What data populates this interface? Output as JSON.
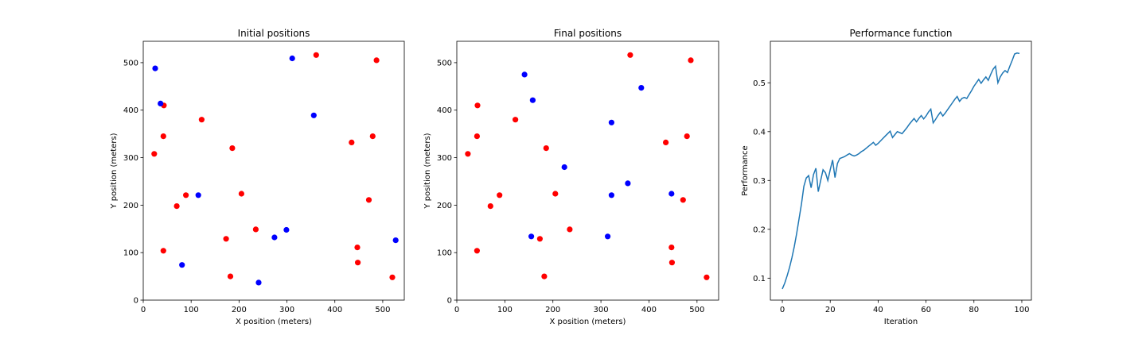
{
  "colors": {
    "red": "#ff0000",
    "blue": "#0000ff",
    "line": "#1f77b4"
  },
  "chart_data": [
    {
      "type": "scatter",
      "title": "Initial positions",
      "xlabel": "X position (meters)",
      "ylabel": "Y position (meters)",
      "xlim": [
        0,
        545
      ],
      "ylim": [
        0,
        545
      ],
      "xticks": [
        0,
        100,
        200,
        300,
        400,
        500
      ],
      "yticks": [
        0,
        100,
        200,
        300,
        400,
        500
      ],
      "series": [
        {
          "color": "red",
          "points": [
            [
              43,
              410
            ],
            [
              122,
              380
            ],
            [
              42,
              345
            ],
            [
              186,
              320
            ],
            [
              23,
              308
            ],
            [
              89,
              221
            ],
            [
              205,
              224
            ],
            [
              70,
              198
            ],
            [
              173,
              129
            ],
            [
              235,
              149
            ],
            [
              42,
              104
            ],
            [
              182,
              50
            ],
            [
              361,
              516
            ],
            [
              487,
              505
            ],
            [
              435,
              332
            ],
            [
              479,
              345
            ],
            [
              471,
              211
            ],
            [
              447,
              111
            ],
            [
              448,
              79
            ],
            [
              520,
              48
            ]
          ]
        },
        {
          "color": "blue",
          "points": [
            [
              25,
              488
            ],
            [
              36,
              414
            ],
            [
              115,
              221
            ],
            [
              81,
              74
            ],
            [
              241,
              37
            ],
            [
              274,
              132
            ],
            [
              299,
              148
            ],
            [
              311,
              509
            ],
            [
              356,
              389
            ],
            [
              527,
              126
            ]
          ]
        }
      ]
    },
    {
      "type": "scatter",
      "title": "Final positions",
      "xlabel": "X position (meters)",
      "ylabel": "Y position (meters)",
      "xlim": [
        0,
        545
      ],
      "ylim": [
        0,
        545
      ],
      "xticks": [
        0,
        100,
        200,
        300,
        400,
        500
      ],
      "yticks": [
        0,
        100,
        200,
        300,
        400,
        500
      ],
      "series": [
        {
          "color": "red",
          "points": [
            [
              43,
              410
            ],
            [
              122,
              380
            ],
            [
              42,
              345
            ],
            [
              186,
              320
            ],
            [
              23,
              308
            ],
            [
              89,
              221
            ],
            [
              205,
              224
            ],
            [
              70,
              198
            ],
            [
              173,
              129
            ],
            [
              235,
              149
            ],
            [
              42,
              104
            ],
            [
              182,
              50
            ],
            [
              361,
              516
            ],
            [
              487,
              505
            ],
            [
              435,
              332
            ],
            [
              479,
              345
            ],
            [
              471,
              211
            ],
            [
              447,
              111
            ],
            [
              448,
              79
            ],
            [
              520,
              48
            ]
          ]
        },
        {
          "color": "blue",
          "points": [
            [
              141,
              475
            ],
            [
              158,
              421
            ],
            [
              322,
              374
            ],
            [
              384,
              447
            ],
            [
              224,
              280
            ],
            [
              322,
              221
            ],
            [
              356,
              246
            ],
            [
              447,
              224
            ],
            [
              155,
              134
            ],
            [
              314,
              134
            ]
          ]
        }
      ]
    },
    {
      "type": "line",
      "title": "Performance function",
      "xlabel": "Iteration",
      "ylabel": "Performance",
      "xlim": [
        -5,
        104
      ],
      "ylim": [
        0.055,
        0.585
      ],
      "xticks": [
        0,
        20,
        40,
        60,
        80,
        100
      ],
      "yticks": [
        0.1,
        0.2,
        0.3,
        0.4,
        0.5
      ],
      "series": [
        {
          "color": "line",
          "x": [
            0,
            1,
            2,
            3,
            4,
            5,
            6,
            7,
            8,
            9,
            10,
            11,
            12,
            13,
            14,
            15,
            16,
            17,
            18,
            19,
            20,
            21,
            22,
            23,
            24,
            25,
            26,
            27,
            28,
            29,
            30,
            31,
            32,
            33,
            34,
            35,
            36,
            37,
            38,
            39,
            40,
            41,
            42,
            43,
            44,
            45,
            46,
            47,
            48,
            49,
            50,
            51,
            52,
            53,
            54,
            55,
            56,
            57,
            58,
            59,
            60,
            61,
            62,
            63,
            64,
            65,
            66,
            67,
            68,
            69,
            70,
            71,
            72,
            73,
            74,
            75,
            76,
            77,
            78,
            79,
            80,
            81,
            82,
            83,
            84,
            85,
            86,
            87,
            88,
            89,
            90,
            91,
            92,
            93,
            94,
            95,
            96,
            97,
            98,
            99
          ],
          "y": [
            0.078,
            0.09,
            0.105,
            0.122,
            0.142,
            0.165,
            0.192,
            0.222,
            0.252,
            0.288,
            0.305,
            0.31,
            0.285,
            0.312,
            0.325,
            0.277,
            0.3,
            0.322,
            0.316,
            0.3,
            0.322,
            0.342,
            0.306,
            0.335,
            0.345,
            0.347,
            0.349,
            0.352,
            0.355,
            0.352,
            0.35,
            0.352,
            0.355,
            0.359,
            0.362,
            0.366,
            0.37,
            0.374,
            0.378,
            0.372,
            0.376,
            0.381,
            0.386,
            0.391,
            0.396,
            0.401,
            0.388,
            0.394,
            0.4,
            0.398,
            0.396,
            0.402,
            0.408,
            0.415,
            0.421,
            0.427,
            0.42,
            0.427,
            0.433,
            0.426,
            0.432,
            0.44,
            0.446,
            0.418,
            0.425,
            0.433,
            0.44,
            0.432,
            0.438,
            0.445,
            0.452,
            0.459,
            0.466,
            0.472,
            0.462,
            0.468,
            0.47,
            0.468,
            0.476,
            0.484,
            0.493,
            0.5,
            0.507,
            0.499,
            0.506,
            0.512,
            0.505,
            0.517,
            0.528,
            0.534,
            0.5,
            0.512,
            0.52,
            0.525,
            0.521,
            0.534,
            0.546,
            0.559,
            0.561,
            0.56
          ]
        }
      ]
    }
  ]
}
